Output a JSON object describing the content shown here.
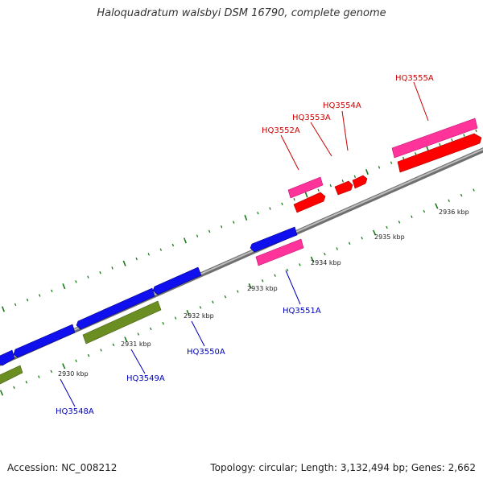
{
  "title": "Haloquadratum walsbyi DSM 16790, complete genome",
  "footer": {
    "accession": "Accession: NC_008212",
    "summary": "Topology: circular; Length: 3,132,494 bp; Genes: 2,662"
  },
  "colors": {
    "backbone": "#8a8a8a",
    "tick": "#1a7a1a",
    "forward_gene": "#ff0000",
    "forward_cds": "#ff3399",
    "reverse_gene": "#1010ee",
    "reverse_cds_pink": "#ff3399",
    "reverse_cds_olive": "#6b8e23",
    "forward_label": "#cc0000",
    "reverse_label": "#0000bb"
  },
  "scale": {
    "tick_labels": [
      "2930 kbp",
      "2931 kbp",
      "2932 kbp",
      "2933 kbp",
      "2934 kbp",
      "2935 kbp",
      "2936 kbp"
    ]
  },
  "labels": {
    "HQ3548A": "HQ3548A",
    "HQ3549A": "HQ3549A",
    "HQ3550A": "HQ3550A",
    "HQ3551A": "HQ3551A",
    "HQ3552A": "HQ3552A",
    "HQ3553A": "HQ3553A",
    "HQ3554A": "HQ3554A",
    "HQ3555A": "HQ3555A"
  }
}
